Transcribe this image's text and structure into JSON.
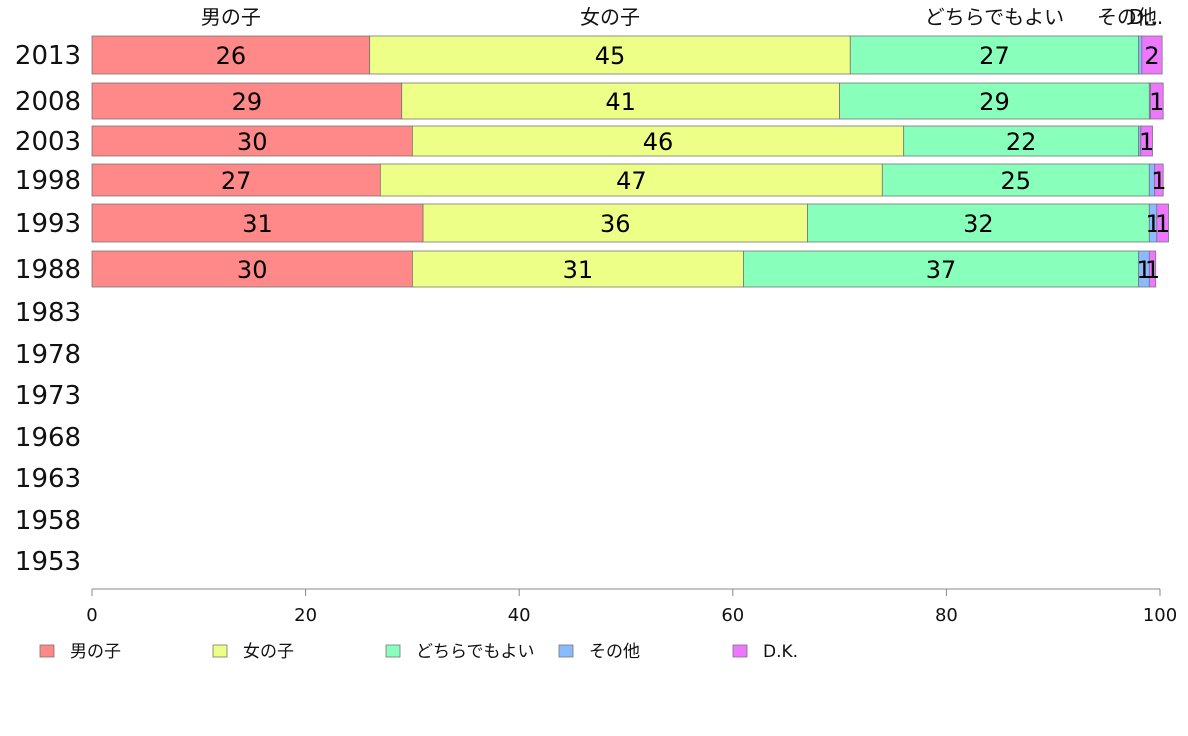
{
  "chart_data": {
    "type": "bar",
    "orientation": "horizontal",
    "stacked": true,
    "categories": [
      "2013",
      "2008",
      "2003",
      "1998",
      "1993",
      "1988",
      "1983",
      "1978",
      "1973",
      "1968",
      "1963",
      "1958",
      "1953"
    ],
    "series": [
      {
        "name": "男の子",
        "color": "#ff8888",
        "values": [
          26,
          29,
          30,
          27,
          31,
          30,
          null,
          null,
          null,
          null,
          null,
          null,
          null
        ],
        "labels": [
          "26",
          "29",
          "30",
          "27",
          "31",
          "30",
          "",
          "",
          "",
          "",
          "",
          "",
          ""
        ]
      },
      {
        "name": "女の子",
        "color": "#eeff88",
        "values": [
          45,
          41,
          46,
          47,
          36,
          31,
          null,
          null,
          null,
          null,
          null,
          null,
          null
        ],
        "labels": [
          "45",
          "41",
          "46",
          "47",
          "36",
          "31",
          "",
          "",
          "",
          "",
          "",
          "",
          ""
        ]
      },
      {
        "name": "どちらでもよい",
        "color": "#88ffbb",
        "values": [
          27,
          29,
          22,
          25,
          32,
          37,
          null,
          null,
          null,
          null,
          null,
          null,
          null
        ],
        "labels": [
          "27",
          "29",
          "22",
          "25",
          "32",
          "37",
          "",
          "",
          "",
          "",
          "",
          "",
          ""
        ]
      },
      {
        "name": "その他",
        "color": "#88bbff",
        "values": [
          0.3,
          0.1,
          0.2,
          0.5,
          0.7,
          1,
          null,
          null,
          null,
          null,
          null,
          null,
          null
        ],
        "labels": [
          "",
          "",
          "",
          "",
          "1",
          "1",
          "",
          "",
          "",
          "",
          "",
          "",
          ""
        ]
      },
      {
        "name": "D.K.",
        "color": "#ee77ff",
        "values": [
          1.9,
          1.2,
          1.1,
          0.8,
          1.1,
          0.6,
          null,
          null,
          null,
          null,
          null,
          null,
          null
        ],
        "labels": [
          "2",
          "1",
          "1",
          "1",
          "1",
          "1",
          "",
          "",
          "",
          "",
          "",
          "",
          ""
        ]
      }
    ],
    "top_labels": [
      "男の子",
      "女の子",
      "どちらでもよい",
      "その他",
      "D..."
    ],
    "xlim": [
      0,
      100
    ],
    "xticks": [
      0,
      20,
      40,
      60,
      80,
      100
    ],
    "grid": false,
    "legend_position": "bottom"
  }
}
